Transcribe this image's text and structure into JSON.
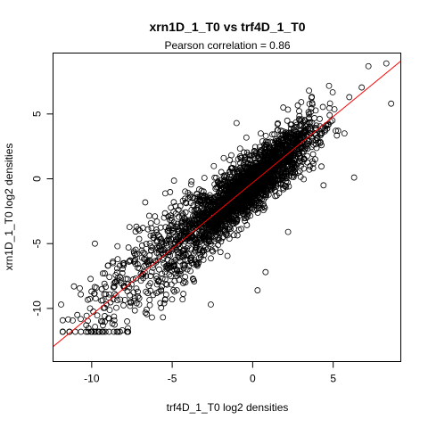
{
  "chart_data": {
    "type": "scatter",
    "title": "xrn1D_1_T0 vs trf4D_1_T0",
    "subtitle": "Pearson correlation =  0.86",
    "xlabel": "trf4D_1_T0 log2 densities",
    "ylabel": "xrn1D_1_T0 log2 densities",
    "xlim": [
      -12.4,
      9.2
    ],
    "ylim": [
      -14.1,
      9.7
    ],
    "xticks": [
      -10,
      -5,
      0,
      5
    ],
    "yticks": [
      -10,
      -5,
      0,
      5
    ],
    "grid": false,
    "point_style": "open-circle",
    "point_color": "#000000",
    "n_points_approx": 3000,
    "pearson_r": 0.86,
    "fit_line": {
      "slope": 1.02,
      "intercept": -0.3,
      "color": "#ff0000"
    },
    "points_sample": [
      {
        "x": 8.3,
        "y": 8.9
      },
      {
        "x": 8.6,
        "y": 5.8
      },
      {
        "x": 6.0,
        "y": 6.3
      },
      {
        "x": 3.5,
        "y": 6.8
      },
      {
        "x": -1.8,
        "y": 1.6
      },
      {
        "x": 0.5,
        "y": 3.5
      },
      {
        "x": -3.8,
        "y": -0.2
      },
      {
        "x": -4.9,
        "y": -1.8
      },
      {
        "x": -5.5,
        "y": -3.0
      },
      {
        "x": -6.5,
        "y": -3.9
      },
      {
        "x": -8.4,
        "y": -5.2
      },
      {
        "x": -9.8,
        "y": -5.0
      },
      {
        "x": -11.1,
        "y": -8.3
      },
      {
        "x": -11.9,
        "y": -9.7
      },
      {
        "x": -10.1,
        "y": -10.0
      },
      {
        "x": -9.3,
        "y": -11.3
      },
      {
        "x": -7.8,
        "y": -11.0
      },
      {
        "x": -5.5,
        "y": -9.6
      },
      {
        "x": -2.6,
        "y": -9.7
      },
      {
        "x": 0.3,
        "y": -8.6
      },
      {
        "x": 0.8,
        "y": -7.2
      },
      {
        "x": -3.8,
        "y": -2.4
      },
      {
        "x": 3.0,
        "y": 1.0
      },
      {
        "x": 5.7,
        "y": 3.5
      },
      {
        "x": 4.4,
        "y": -0.5
      },
      {
        "x": 6.3,
        "y": 0.1
      },
      {
        "x": 2.2,
        "y": -4.1
      },
      {
        "x": -1.5,
        "y": -3.9
      },
      {
        "x": -1.0,
        "y": 4.3
      },
      {
        "x": 1.9,
        "y": 5.5
      }
    ]
  }
}
